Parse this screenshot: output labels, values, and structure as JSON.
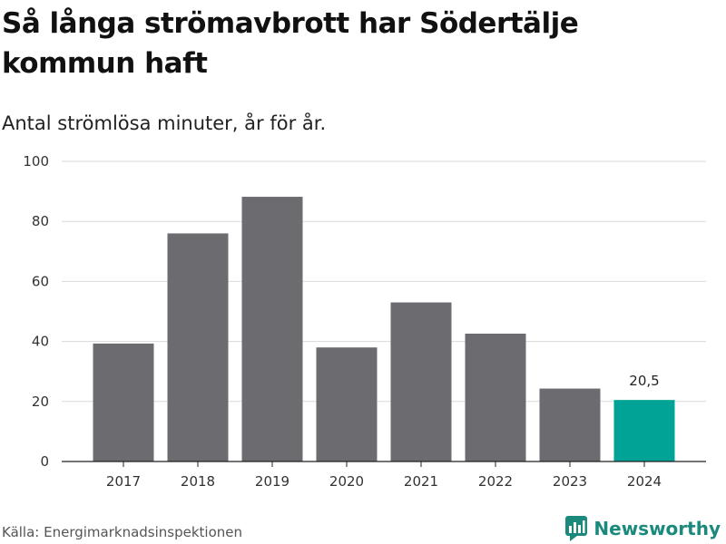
{
  "title": "Så långa strömavbrott har Södertälje kommun haft",
  "subtitle": "Antal strömlösa minuter, år för år.",
  "source": "Källa: Energimarknadsinspektionen",
  "brand": {
    "name": "Newsworthy",
    "icon": "bar-chart-logo-icon",
    "color": "#1b8a7d"
  },
  "colors": {
    "bar": "#6c6b70",
    "highlight": "#00a396",
    "grid": "#d9d9d9",
    "axis": "#222222"
  },
  "chart_data": {
    "type": "bar",
    "title": "Så långa strömavbrott har Södertälje kommun haft",
    "subtitle": "Antal strömlösa minuter, år för år.",
    "xlabel": "",
    "ylabel": "",
    "categories": [
      "2017",
      "2018",
      "2019",
      "2020",
      "2021",
      "2022",
      "2023",
      "2024"
    ],
    "values": [
      39.3,
      76,
      88.2,
      38,
      53,
      42.6,
      24.3,
      20.5
    ],
    "ylim": [
      0,
      100
    ],
    "yticks": [
      0,
      20,
      40,
      60,
      80,
      100
    ],
    "highlight_index": 7,
    "data_labels": [
      {
        "index": 7,
        "text": "20,5"
      }
    ],
    "grid": true
  }
}
